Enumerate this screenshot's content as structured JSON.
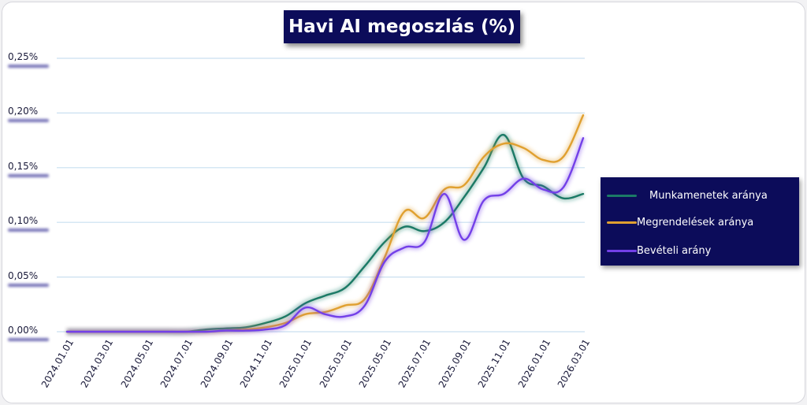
{
  "chart_data": {
    "type": "line",
    "title": "Havi AI megoszlás (%)",
    "xlabel": "",
    "ylabel": "",
    "ylim": [
      0,
      0.25
    ],
    "grid": true,
    "legend_position": "right",
    "y_ticks": [
      "0,00%",
      "0,05%",
      "0,10%",
      "0,15%",
      "0,20%",
      "0,25%"
    ],
    "x_tick_labels": [
      "2024.01.01",
      "2024.03.01",
      "2024.05.01",
      "2024.07.01",
      "2024.09.01",
      "2024.11.01",
      "2025.01.01",
      "2025.03.01",
      "2025.05.01",
      "2025.07.01",
      "2025.09.01",
      "2025.11.01",
      "2026.01.01",
      "2026.03.01"
    ],
    "x": [
      "2024.01",
      "2024.02",
      "2024.03",
      "2024.04",
      "2024.05",
      "2024.06",
      "2024.07",
      "2024.08",
      "2024.09",
      "2024.10",
      "2024.11",
      "2024.12",
      "2025.01",
      "2025.02",
      "2025.03",
      "2025.04",
      "2025.05",
      "2025.06",
      "2025.07",
      "2025.08",
      "2025.09",
      "2025.10",
      "2025.11",
      "2025.12",
      "2026.01",
      "2026.02",
      "2026.03"
    ],
    "series": [
      {
        "name": "Munkamenetek aránya",
        "color": "#1b7a66",
        "values": [
          0.0,
          0.0,
          0.0,
          0.0,
          0.0,
          0.0,
          0.0,
          0.002,
          0.003,
          0.004,
          0.008,
          0.014,
          0.026,
          0.033,
          0.04,
          0.06,
          0.082,
          0.096,
          0.092,
          0.1,
          0.123,
          0.15,
          0.18,
          0.14,
          0.133,
          0.122,
          0.126
        ]
      },
      {
        "name": "Megrendelések aránya",
        "color": "#e0a030",
        "values": [
          0.0,
          0.0,
          0.0,
          0.0,
          0.0,
          0.0,
          0.0,
          0.0,
          0.001,
          0.002,
          0.004,
          0.008,
          0.016,
          0.018,
          0.024,
          0.03,
          0.068,
          0.11,
          0.104,
          0.13,
          0.134,
          0.16,
          0.172,
          0.168,
          0.157,
          0.16,
          0.198
        ]
      },
      {
        "name": "Bevételi arány",
        "color": "#7340e8",
        "values": [
          0.0,
          0.0,
          0.0,
          0.0,
          0.0,
          0.0,
          0.0,
          0.0,
          0.001,
          0.001,
          0.002,
          0.006,
          0.022,
          0.016,
          0.014,
          0.024,
          0.064,
          0.077,
          0.082,
          0.126,
          0.084,
          0.12,
          0.126,
          0.14,
          0.13,
          0.132,
          0.177
        ]
      }
    ]
  }
}
